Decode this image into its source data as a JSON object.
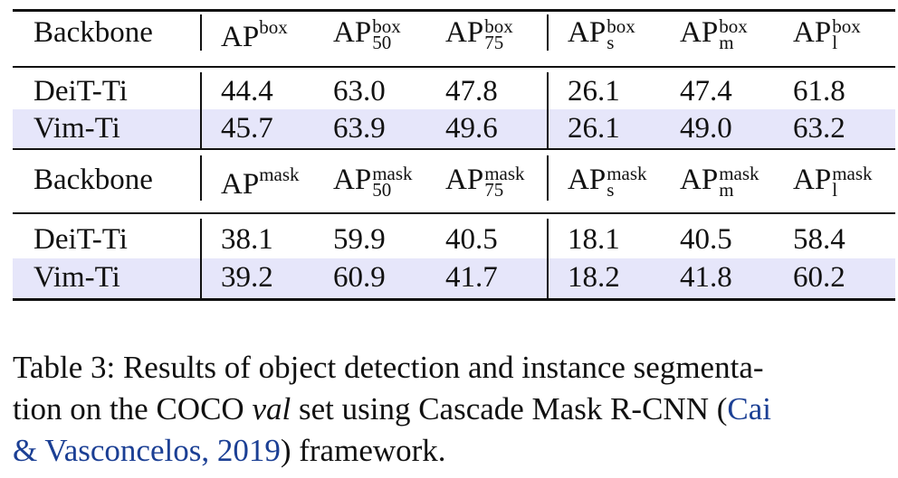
{
  "table": {
    "box_section": {
      "header": {
        "backbone": "Backbone",
        "cols": [
          {
            "base": "AP",
            "sup": "box",
            "sub": ""
          },
          {
            "base": "AP",
            "sup": "box",
            "sub": "50"
          },
          {
            "base": "AP",
            "sup": "box",
            "sub": "75"
          },
          {
            "base": "AP",
            "sup": "box",
            "sub": "s"
          },
          {
            "base": "AP",
            "sup": "box",
            "sub": "m"
          },
          {
            "base": "AP",
            "sup": "box",
            "sub": "l"
          }
        ]
      },
      "rows": [
        {
          "name": "DeiT-Ti",
          "values": [
            "44.4",
            "63.0",
            "47.8",
            "26.1",
            "47.4",
            "61.8"
          ]
        },
        {
          "name": "Vim-Ti",
          "values": [
            "45.7",
            "63.9",
            "49.6",
            "26.1",
            "49.0",
            "63.2"
          ]
        }
      ]
    },
    "mask_section": {
      "header": {
        "backbone": "Backbone",
        "cols": [
          {
            "base": "AP",
            "sup": "mask",
            "sub": ""
          },
          {
            "base": "AP",
            "sup": "mask",
            "sub": "50"
          },
          {
            "base": "AP",
            "sup": "mask",
            "sub": "75"
          },
          {
            "base": "AP",
            "sup": "mask",
            "sub": "s"
          },
          {
            "base": "AP",
            "sup": "mask",
            "sub": "m"
          },
          {
            "base": "AP",
            "sup": "mask",
            "sub": "l"
          }
        ]
      },
      "rows": [
        {
          "name": "DeiT-Ti",
          "values": [
            "38.1",
            "59.9",
            "40.5",
            "18.1",
            "40.5",
            "58.4"
          ]
        },
        {
          "name": "Vim-Ti",
          "values": [
            "39.2",
            "60.9",
            "41.7",
            "18.2",
            "41.8",
            "60.2"
          ]
        }
      ]
    }
  },
  "caption": {
    "prefix": "Table 3: Results of object detection and instance segmenta-",
    "line2_a": "tion on the COCO ",
    "line2_ital": "val",
    "line2_b": " set using Cascade Mask R-CNN (",
    "cite_1": "Cai",
    "cite_2": "& Vasconcelos, 2019",
    "suffix": ") framework."
  },
  "colors": {
    "highlight": "#e6e6fa",
    "cite": "#1b3f94"
  }
}
